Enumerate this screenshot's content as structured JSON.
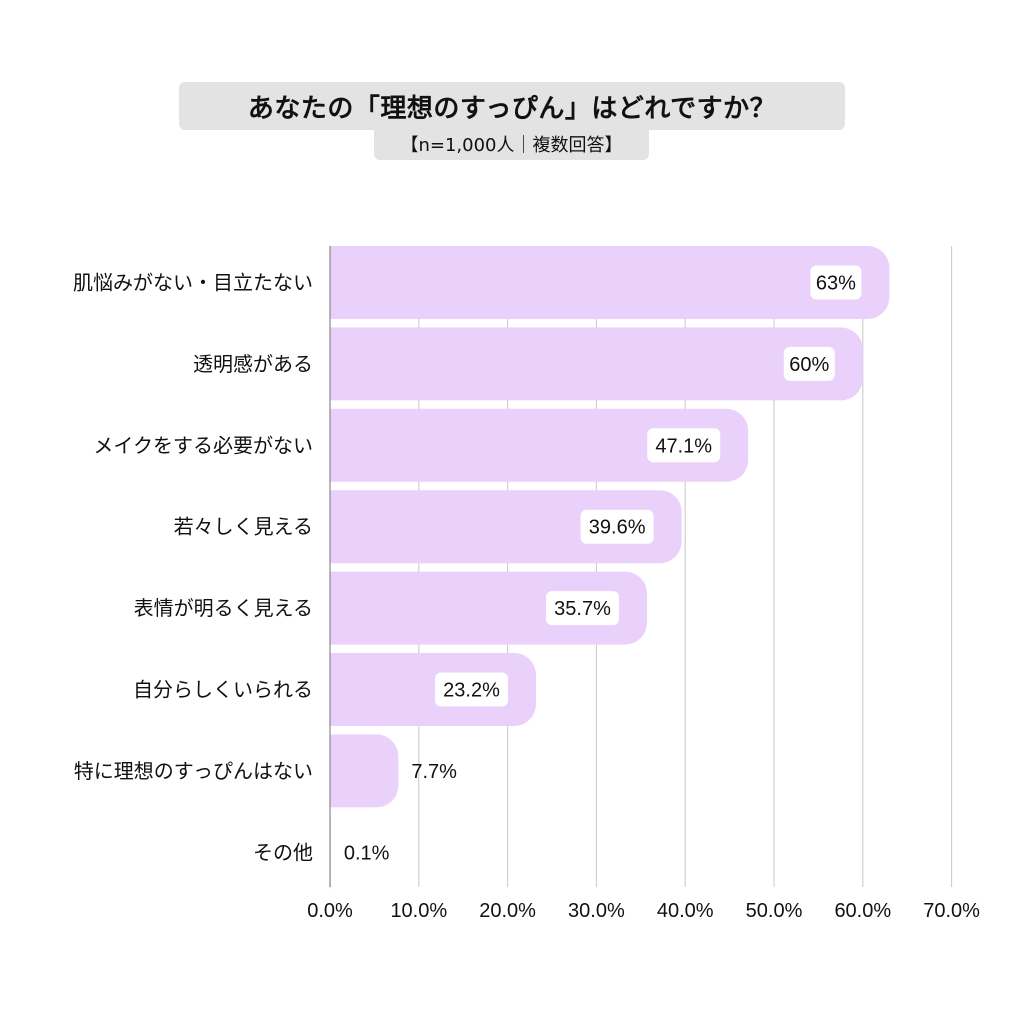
{
  "header": {
    "title": "あなたの「理想のすっぴん」はどれですか？",
    "subtitle": "【n=1,000人｜複数回答】"
  },
  "colors": {
    "bar": "#ead1fb",
    "title_bg": "#e3e3e3",
    "grid": "#c8c8c8",
    "axis": "#888888",
    "label_bg": "#ffffff"
  },
  "chart_data": {
    "type": "bar",
    "orientation": "horizontal",
    "title": "あなたの「理想のすっぴん」はどれですか？",
    "subtitle": "【n=1,000人｜複数回答】",
    "categories": [
      "肌悩みがない・目立たない",
      "透明感がある",
      "メイクをする必要がない",
      "若々しく見える",
      "表情が明るく見える",
      "自分らしくいられる",
      "特に理想のすっぴんはない",
      "その他"
    ],
    "values": [
      63,
      60,
      47.1,
      39.6,
      35.7,
      23.2,
      7.7,
      0.1
    ],
    "value_labels": [
      "63%",
      "60%",
      "47.1%",
      "39.6%",
      "35.7%",
      "23.2%",
      "7.7%",
      "0.1%"
    ],
    "xlim": [
      0,
      70
    ],
    "x_ticks": [
      0,
      10,
      20,
      30,
      40,
      50,
      60,
      70
    ],
    "x_tick_labels": [
      "0.0%",
      "10.0%",
      "20.0%",
      "30.0%",
      "40.0%",
      "50.0%",
      "60.0%",
      "70.0%"
    ],
    "grid": true,
    "legend": "none"
  }
}
